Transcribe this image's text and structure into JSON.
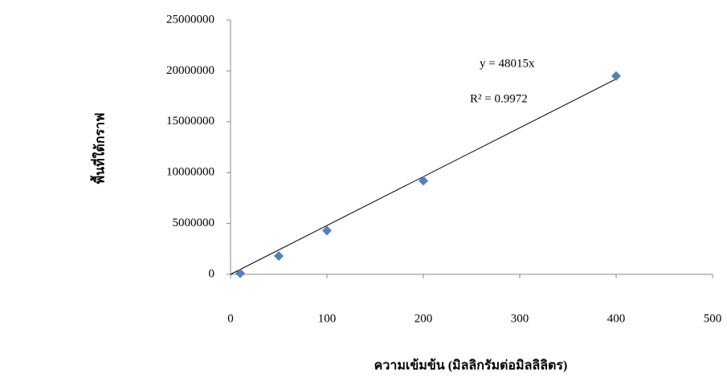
{
  "chart_data": {
    "type": "scatter",
    "x_label": "ความเข้มข้น (มิลลิกรัมต่อมิลลิลิตร)",
    "y_label": "พื้นที่ใต้กราฟ",
    "series": [
      {
        "name": "พื้นที่ใต้กราฟ",
        "color": "#4f81bd",
        "x": [
          10,
          50,
          100,
          200,
          400
        ],
        "values": [
          100000,
          1800000,
          4300000,
          9200000,
          19500000
        ]
      }
    ],
    "trendline": {
      "slope": 48015,
      "equation": "y = 48015x",
      "r_squared_label": "R² = 0.9972"
    },
    "xlim": [
      0,
      500
    ],
    "xticks": [
      0,
      100,
      200,
      300,
      400,
      500
    ],
    "ylim": [
      0,
      25000000
    ],
    "yticks": [
      0,
      5000000,
      10000000,
      15000000,
      20000000,
      25000000
    ],
    "grid": false
  }
}
